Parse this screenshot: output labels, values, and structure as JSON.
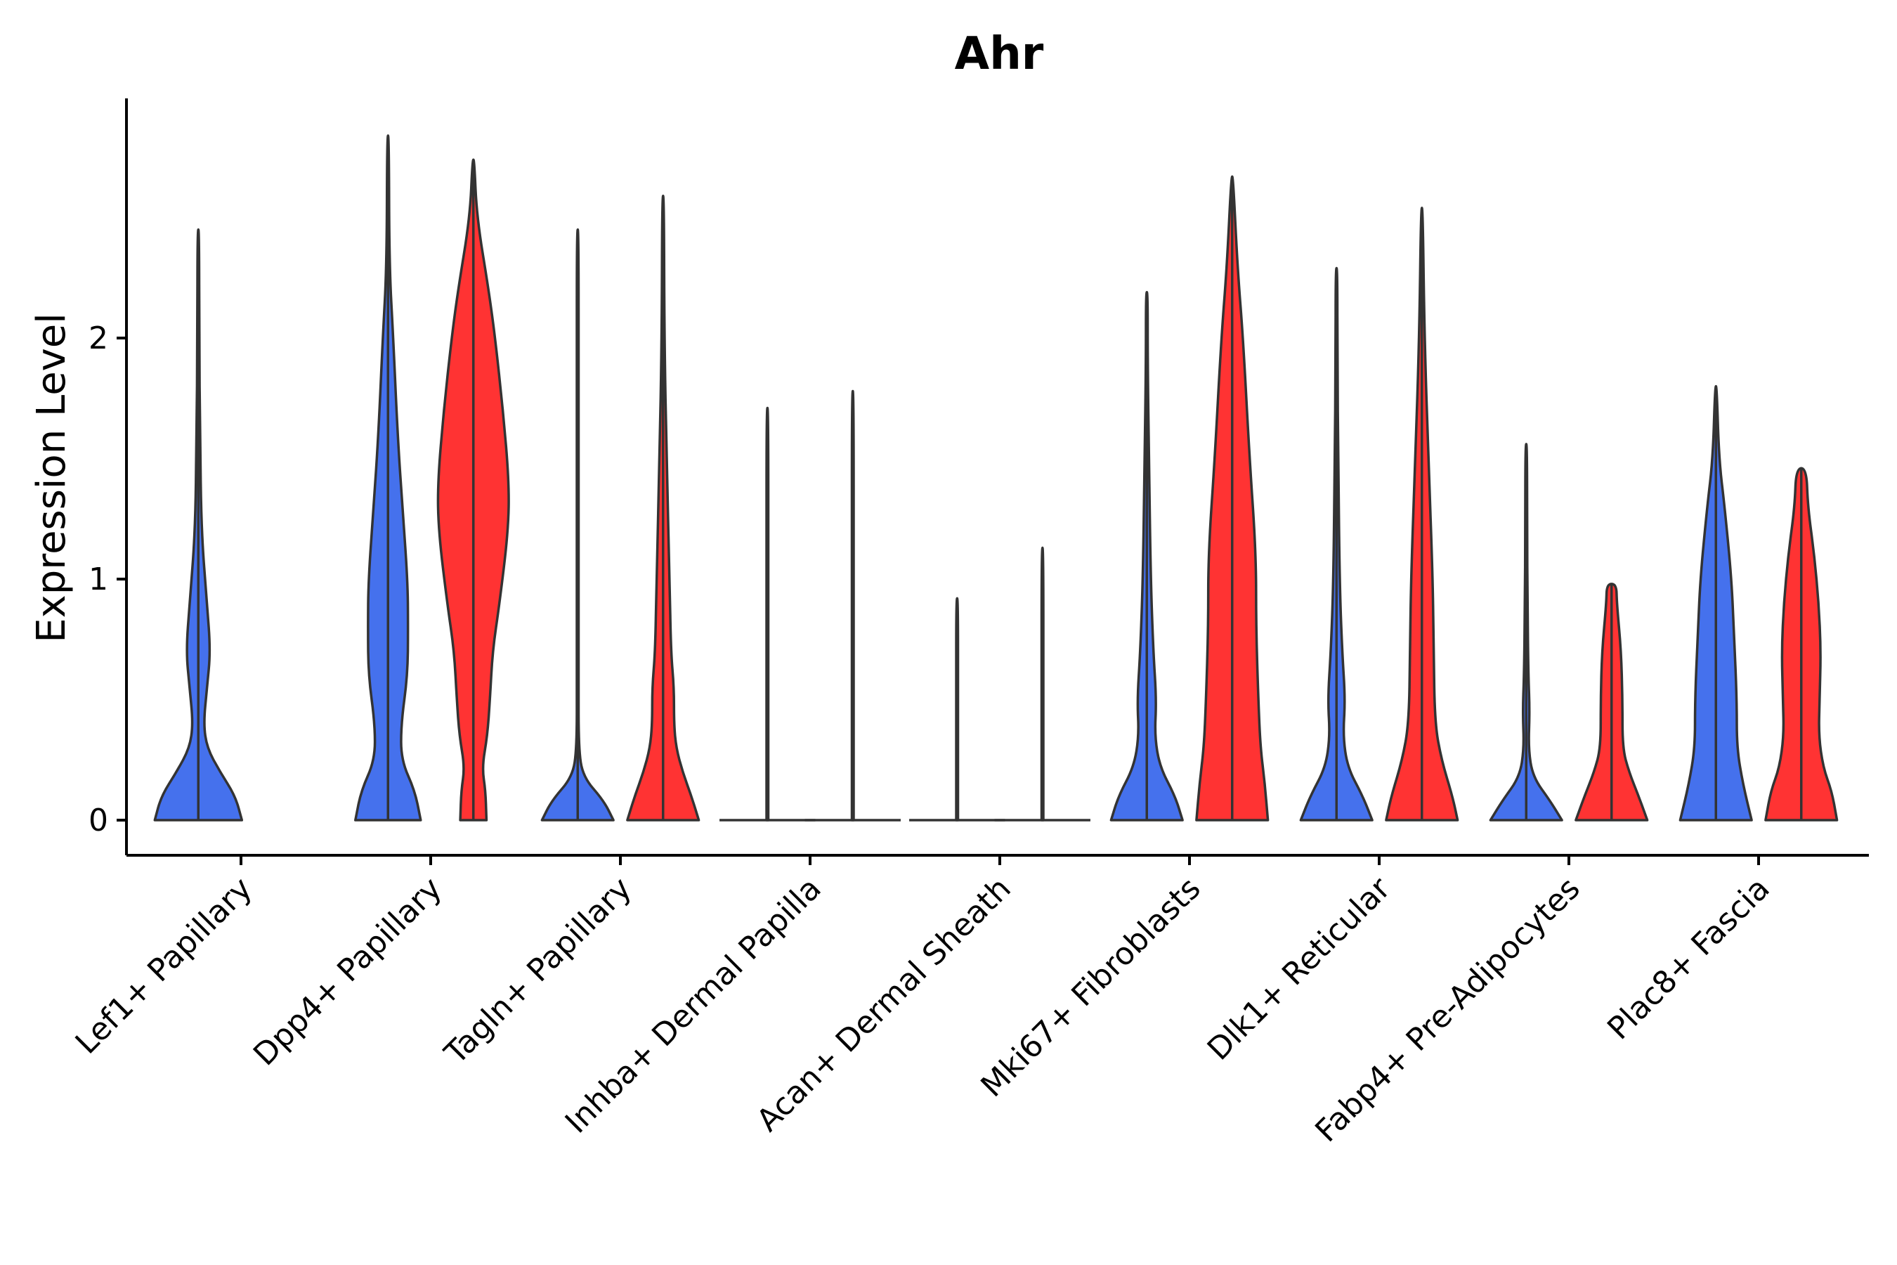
{
  "chart_data": {
    "type": "violin",
    "title": "Ahr",
    "xlabel": "",
    "ylabel": "Expression Level",
    "ylim": [
      -0.15,
      3.0
    ],
    "yticks": [
      0,
      1,
      2
    ],
    "categories": [
      "Lef1+ Papillary",
      "Dpp4+ Papillary",
      "Tagln+ Papillary",
      "Inhba+ Dermal Papilla",
      "Acan+ Dermal Sheath",
      "Mki67+ Fibroblasts",
      "Dlk1+ Reticular",
      "Fabp4+ Pre-Adipocytes",
      "Plac8+ Fascia"
    ],
    "series": [
      {
        "name": "group-blue",
        "color": "#4571ED",
        "offset": -0.225,
        "violins": [
          {
            "max": 2.45,
            "profile": [
              [
                0,
                1.0
              ],
              [
                0.1,
                0.85
              ],
              [
                0.2,
                0.5
              ],
              [
                0.3,
                0.2
              ],
              [
                0.4,
                0.12
              ],
              [
                0.55,
                0.2
              ],
              [
                0.7,
                0.28
              ],
              [
                0.9,
                0.2
              ],
              [
                1.2,
                0.07
              ],
              [
                1.6,
                0.04
              ],
              [
                2.0,
                0.02
              ],
              [
                2.45,
                0.01
              ]
            ]
          },
          {
            "max": 2.84,
            "profile": [
              [
                0,
                0.75
              ],
              [
                0.12,
                0.62
              ],
              [
                0.25,
                0.3
              ],
              [
                0.4,
                0.3
              ],
              [
                0.6,
                0.45
              ],
              [
                0.8,
                0.46
              ],
              [
                1.0,
                0.45
              ],
              [
                1.3,
                0.33
              ],
              [
                1.6,
                0.22
              ],
              [
                2.0,
                0.12
              ],
              [
                2.3,
                0.03
              ],
              [
                2.84,
                0.005
              ]
            ]
          },
          {
            "max": 2.45,
            "profile": [
              [
                0,
                0.82
              ],
              [
                0.08,
                0.6
              ],
              [
                0.18,
                0.12
              ],
              [
                0.3,
                0.02
              ],
              [
                0.6,
                0.015
              ],
              [
                1.0,
                0.01
              ],
              [
                1.8,
                0.008
              ],
              [
                2.45,
                0.004
              ]
            ]
          },
          {
            "max": 1.71,
            "profile": [
              [
                0,
                0.01
              ],
              [
                0.02,
                0.004
              ],
              [
                0.5,
                0.004
              ],
              [
                1.0,
                0.003
              ],
              [
                1.71,
                0.002
              ]
            ]
          },
          {
            "max": 0.92,
            "profile": [
              [
                0,
                0.008
              ],
              [
                0.02,
                0.003
              ],
              [
                0.5,
                0.003
              ],
              [
                0.92,
                0.002
              ]
            ]
          },
          {
            "max": 2.19,
            "profile": [
              [
                0,
                0.82
              ],
              [
                0.1,
                0.65
              ],
              [
                0.22,
                0.3
              ],
              [
                0.35,
                0.18
              ],
              [
                0.5,
                0.22
              ],
              [
                0.7,
                0.15
              ],
              [
                1.0,
                0.09
              ],
              [
                1.5,
                0.05
              ],
              [
                1.9,
                0.02
              ],
              [
                2.19,
                0.005
              ]
            ]
          },
          {
            "max": 2.29,
            "profile": [
              [
                0,
                0.82
              ],
              [
                0.1,
                0.6
              ],
              [
                0.22,
                0.25
              ],
              [
                0.35,
                0.15
              ],
              [
                0.5,
                0.2
              ],
              [
                0.7,
                0.13
              ],
              [
                1.0,
                0.07
              ],
              [
                1.5,
                0.04
              ],
              [
                1.9,
                0.02
              ],
              [
                2.29,
                0.005
              ]
            ]
          },
          {
            "max": 1.56,
            "profile": [
              [
                0,
                0.82
              ],
              [
                0.08,
                0.55
              ],
              [
                0.18,
                0.15
              ],
              [
                0.3,
                0.05
              ],
              [
                0.45,
                0.08
              ],
              [
                0.6,
                0.05
              ],
              [
                0.9,
                0.03
              ],
              [
                1.2,
                0.02
              ],
              [
                1.56,
                0.004
              ]
            ]
          },
          {
            "max": 1.8,
            "profile": [
              [
                0,
                0.82
              ],
              [
                0.15,
                0.62
              ],
              [
                0.3,
                0.48
              ],
              [
                0.5,
                0.48
              ],
              [
                0.75,
                0.42
              ],
              [
                1.0,
                0.36
              ],
              [
                1.3,
                0.2
              ],
              [
                1.5,
                0.07
              ],
              [
                1.8,
                0.005
              ]
            ]
          }
        ]
      },
      {
        "name": "group-red",
        "color": "#FF3333",
        "offset": 0.225,
        "violins": [
          null,
          {
            "max": 2.74,
            "profile": [
              [
                0,
                0.3
              ],
              [
                0.12,
                0.28
              ],
              [
                0.22,
                0.2
              ],
              [
                0.35,
                0.32
              ],
              [
                0.5,
                0.38
              ],
              [
                0.7,
                0.44
              ],
              [
                0.9,
                0.6
              ],
              [
                1.2,
                0.8
              ],
              [
                1.4,
                0.82
              ],
              [
                1.7,
                0.68
              ],
              [
                2.0,
                0.5
              ],
              [
                2.2,
                0.35
              ],
              [
                2.5,
                0.08
              ],
              [
                2.74,
                0.005
              ]
            ]
          },
          {
            "max": 2.59,
            "profile": [
              [
                0,
                0.82
              ],
              [
                0.1,
                0.65
              ],
              [
                0.2,
                0.45
              ],
              [
                0.3,
                0.3
              ],
              [
                0.4,
                0.25
              ],
              [
                0.55,
                0.25
              ],
              [
                0.7,
                0.18
              ],
              [
                1.0,
                0.15
              ],
              [
                1.5,
                0.08
              ],
              [
                2.0,
                0.03
              ],
              [
                2.59,
                0.005
              ]
            ]
          },
          {
            "max": 1.78,
            "profile": [
              [
                0,
                0.01
              ],
              [
                0.02,
                0.004
              ],
              [
                0.5,
                0.004
              ],
              [
                1.0,
                0.003
              ],
              [
                1.78,
                0.002
              ]
            ]
          },
          {
            "max": 1.13,
            "profile": [
              [
                0,
                0.01
              ],
              [
                0.02,
                0.004
              ],
              [
                0.5,
                0.004
              ],
              [
                1.13,
                0.002
              ]
            ]
          },
          {
            "max": 2.67,
            "profile": [
              [
                0,
                0.82
              ],
              [
                0.15,
                0.75
              ],
              [
                0.3,
                0.65
              ],
              [
                0.5,
                0.6
              ],
              [
                0.8,
                0.55
              ],
              [
                1.1,
                0.55
              ],
              [
                1.5,
                0.4
              ],
              [
                2.0,
                0.25
              ],
              [
                2.3,
                0.12
              ],
              [
                2.67,
                0.005
              ]
            ]
          },
          {
            "max": 2.54,
            "profile": [
              [
                0,
                0.82
              ],
              [
                0.1,
                0.7
              ],
              [
                0.25,
                0.45
              ],
              [
                0.4,
                0.3
              ],
              [
                0.7,
                0.27
              ],
              [
                1.0,
                0.25
              ],
              [
                1.5,
                0.15
              ],
              [
                2.0,
                0.06
              ],
              [
                2.54,
                0.005
              ]
            ]
          },
          {
            "max": 0.98,
            "profile": [
              [
                0,
                0.82
              ],
              [
                0.1,
                0.62
              ],
              [
                0.2,
                0.4
              ],
              [
                0.3,
                0.25
              ],
              [
                0.5,
                0.25
              ],
              [
                0.7,
                0.22
              ],
              [
                0.9,
                0.12
              ],
              [
                0.98,
                0.11
              ]
            ]
          },
          {
            "max": 1.46,
            "profile": [
              [
                0,
                0.82
              ],
              [
                0.12,
                0.7
              ],
              [
                0.22,
                0.5
              ],
              [
                0.35,
                0.4
              ],
              [
                0.5,
                0.42
              ],
              [
                0.7,
                0.45
              ],
              [
                0.9,
                0.4
              ],
              [
                1.1,
                0.3
              ],
              [
                1.3,
                0.15
              ],
              [
                1.46,
                0.12
              ]
            ]
          }
        ]
      }
    ],
    "grid": false,
    "legend": "none"
  }
}
